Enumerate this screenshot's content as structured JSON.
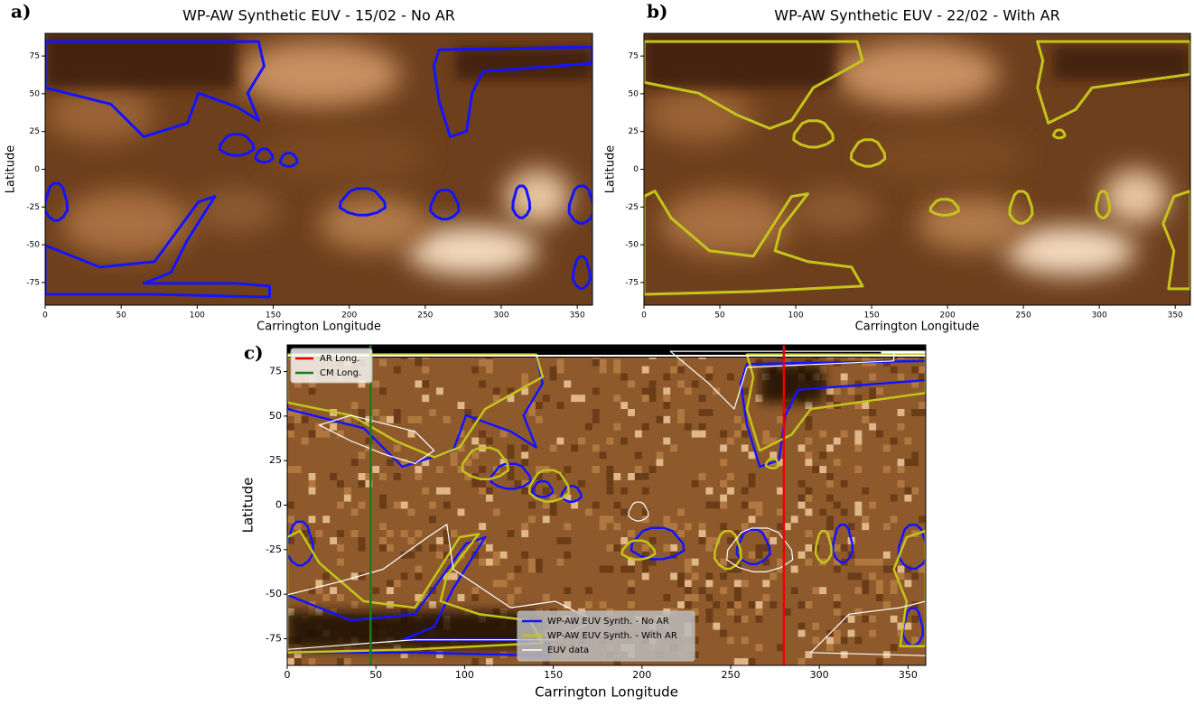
{
  "chart_data": [
    {
      "type": "heatmap",
      "label": "a)",
      "title": "WP-AW Synthetic EUV - 15/02 - No AR",
      "xlabel": "Carrington Longitude",
      "ylabel": "Latitude",
      "xlim": [
        0,
        360
      ],
      "ylim": [
        -90,
        90
      ],
      "xticks": [
        0,
        50,
        100,
        150,
        200,
        250,
        300,
        350
      ],
      "yticks": [
        -75,
        -50,
        -25,
        0,
        25,
        50,
        75
      ],
      "contour_color": "#1414ff"
    },
    {
      "type": "heatmap",
      "label": "b)",
      "title": "WP-AW Synthetic EUV - 22/02 - With AR",
      "xlabel": "Carrington Longitude",
      "ylabel": "Latitude",
      "xlim": [
        0,
        360
      ],
      "ylim": [
        -90,
        90
      ],
      "xticks": [
        0,
        50,
        100,
        150,
        200,
        250,
        300,
        350
      ],
      "yticks": [
        -75,
        -50,
        -25,
        0,
        25,
        50,
        75
      ],
      "contour_color": "#c4c41a"
    },
    {
      "type": "heatmap",
      "label": "c)",
      "xlabel": "Carrington Longitude",
      "ylabel": "Latitude",
      "xlim": [
        0,
        360
      ],
      "ylim": [
        -90,
        90
      ],
      "xticks": [
        0,
        50,
        100,
        150,
        200,
        250,
        300,
        350
      ],
      "yticks": [
        -75,
        -50,
        -25,
        0,
        25,
        50,
        75
      ],
      "lines": [
        {
          "name": "AR Long.",
          "color": "#ee0000",
          "x": 280
        },
        {
          "name": "CM Long.",
          "color": "#1a7a1a",
          "x": 47
        }
      ],
      "contours": [
        {
          "name": "WP-AW EUV Synth. - No AR",
          "color": "#1414ff"
        },
        {
          "name": "WP-AW EUV Synth. - With AR",
          "color": "#c4c41a"
        },
        {
          "name": "EUV data",
          "color": "#ffffff"
        }
      ]
    }
  ]
}
